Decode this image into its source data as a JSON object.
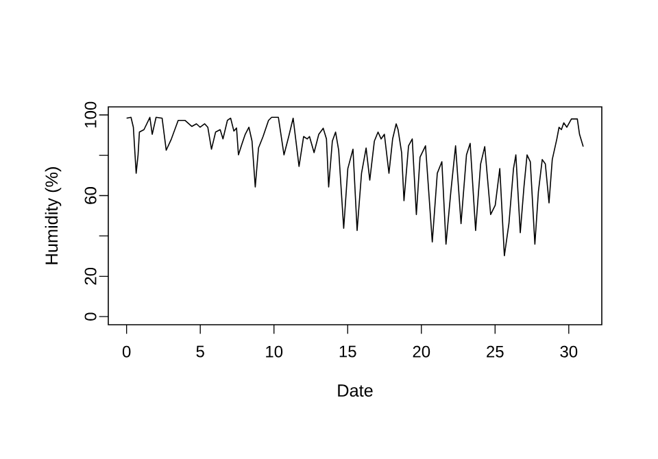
{
  "chart_data": {
    "type": "line",
    "xlabel": "Date",
    "ylabel": "Humidity (%)",
    "xlim": [
      -1.24,
      32.24
    ],
    "ylim": [
      -4,
      104
    ],
    "xticks": [
      0,
      5,
      10,
      15,
      20,
      25,
      30
    ],
    "yticks": [
      0,
      20,
      {
        "value": 40,
        "label": null
      },
      60,
      {
        "value": 80,
        "label": null
      },
      100
    ],
    "line_style": "solid",
    "marker": "none",
    "series": [
      {
        "color": "#000000",
        "x": [
          0,
          0.3,
          0.46,
          0.65,
          0.78,
          0.87,
          1.18,
          1.58,
          1.74,
          2.0,
          2.41,
          2.69,
          3.04,
          3.5,
          3.96,
          4.43,
          4.74,
          4.99,
          5.3,
          5.51,
          5.76,
          6.04,
          6.35,
          6.54,
          6.84,
          7.06,
          7.28,
          7.46,
          7.59,
          7.84,
          8.05,
          8.3,
          8.51,
          8.73,
          8.95,
          9.26,
          9.63,
          9.84,
          10.3,
          10.68,
          11.0,
          11.3,
          11.7,
          12.01,
          12.26,
          12.41,
          12.72,
          13.04,
          13.34,
          13.56,
          13.71,
          13.96,
          14.18,
          14.39,
          14.73,
          15.01,
          15.36,
          15.64,
          15.94,
          16.25,
          16.5,
          16.81,
          17.06,
          17.27,
          17.49,
          17.8,
          18.05,
          18.29,
          18.42,
          18.66,
          18.82,
          19.13,
          19.38,
          19.66,
          19.91,
          20.28,
          20.74,
          21.08,
          21.39,
          21.67,
          22.0,
          22.32,
          22.69,
          23.06,
          23.31,
          23.68,
          24.02,
          24.3,
          24.7,
          25.01,
          25.32,
          25.63,
          25.94,
          26.25,
          26.41,
          26.71,
          26.96,
          27.17,
          27.39,
          27.7,
          27.94,
          28.2,
          28.41,
          28.66,
          28.88,
          29.19,
          29.34,
          29.5,
          29.66,
          29.87,
          30.18,
          30.58,
          30.73,
          30.98
        ],
        "values": [
          98.4,
          98.8,
          93.9,
          71.1,
          80.2,
          91.5,
          92.7,
          98.8,
          90.4,
          98.8,
          98.4,
          82.5,
          88.1,
          97.3,
          97.3,
          94.3,
          95.6,
          93.9,
          95.6,
          93.9,
          83.0,
          91.5,
          92.7,
          88.1,
          97.3,
          98.4,
          92.0,
          93.5,
          80.2,
          85.9,
          90.4,
          93.9,
          87.0,
          64.3,
          83.6,
          89.3,
          97.3,
          98.8,
          98.8,
          80.2,
          89.3,
          98.4,
          74.5,
          89.3,
          88.1,
          89.3,
          81.3,
          90.4,
          93.4,
          88.1,
          64.3,
          87.0,
          91.5,
          82.5,
          43.8,
          73.4,
          83.0,
          42.7,
          71.1,
          83.6,
          67.7,
          87.0,
          91.5,
          88.1,
          90.4,
          71.1,
          88.1,
          95.6,
          92.7,
          81.3,
          57.5,
          84.7,
          88.1,
          50.6,
          79.1,
          84.7,
          37.0,
          71.1,
          76.8,
          35.9,
          62.0,
          84.7,
          46.1,
          80.2,
          85.9,
          42.7,
          75.7,
          84.3,
          50.6,
          55.2,
          73.4,
          30.2,
          46.1,
          73.4,
          80.2,
          41.6,
          64.3,
          80.2,
          76.8,
          35.9,
          62.0,
          77.9,
          75.7,
          56.4,
          77.9,
          88.1,
          93.9,
          92.7,
          96.1,
          93.9,
          98.0,
          98.0,
          90.4,
          84.3
        ]
      }
    ]
  }
}
